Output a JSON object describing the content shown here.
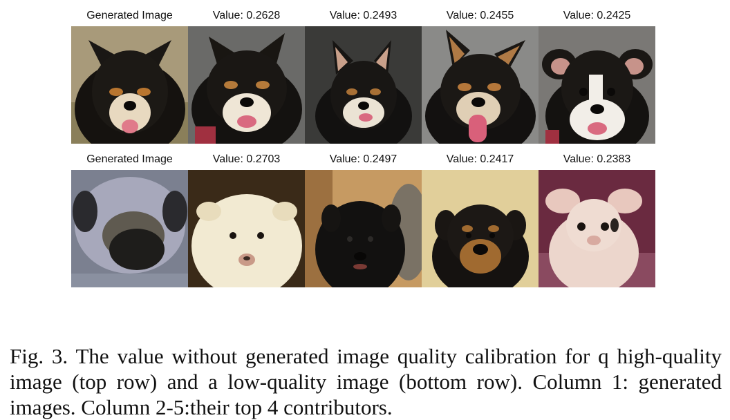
{
  "rows": [
    {
      "cells": [
        {
          "label": "Generated Image",
          "image": "black-tan-dog-generated"
        },
        {
          "label": "Value: 0.2628",
          "image": "black-tan-dog-contributor-1"
        },
        {
          "label": "Value: 0.2493",
          "image": "black-tan-dog-contributor-2"
        },
        {
          "label": "Value: 0.2455",
          "image": "black-tan-dog-contributor-3"
        },
        {
          "label": "Value: 0.2425",
          "image": "black-tan-puppy-contributor-4"
        }
      ]
    },
    {
      "cells": [
        {
          "label": "Generated Image",
          "image": "blurry-gray-dog-generated"
        },
        {
          "label": "Value: 0.2703",
          "image": "white-fluffy-puppy-contributor-1"
        },
        {
          "label": "Value: 0.2497",
          "image": "black-fluffy-puppy-contributor-2"
        },
        {
          "label": "Value: 0.2417",
          "image": "rottweiler-puppy-contributor-3"
        },
        {
          "label": "Value: 0.2383",
          "image": "pink-puppy-contributor-4"
        }
      ]
    }
  ],
  "caption": "Fig. 3.  The value without generated image quality calibration for q high-quality image (top row) and a low-quality image (bottom row). Column 1: generated images. Column 2-5:their top 4 contributors."
}
